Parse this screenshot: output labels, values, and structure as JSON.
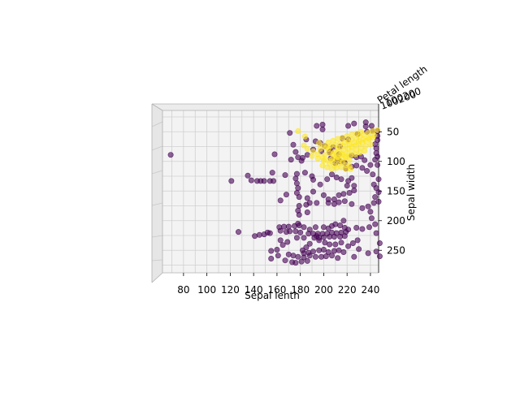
{
  "chart_data": {
    "type": "scatter",
    "projection": "3d",
    "view": "top-down",
    "xlabel": "Sepal lenth",
    "ylabel": "Sepal width",
    "zlabel": "Petal length",
    "xlim": [
      62,
      247
    ],
    "ylim": [
      288,
      14
    ],
    "xticks": [
      "80",
      "100",
      "120",
      "140",
      "160",
      "180",
      "200",
      "220",
      "240"
    ],
    "xtick_values": [
      80,
      100,
      120,
      140,
      160,
      180,
      200,
      220,
      240
    ],
    "yticks": [
      "50",
      "100",
      "150",
      "200",
      "250"
    ],
    "ytick_values": [
      50,
      100,
      150,
      200,
      250
    ],
    "zticks_label_text": "100200",
    "grid": true,
    "colors": {
      "class_0": "#440154",
      "class_1": "#fde725",
      "pane": "#f2f2f2",
      "grid": "#d0d0d0"
    },
    "series": [
      {
        "color": "#440154",
        "points": [
          [
            69,
            89
          ],
          [
            121,
            133
          ],
          [
            135,
            124
          ],
          [
            138,
            132
          ],
          [
            143,
            133
          ],
          [
            146,
            133
          ],
          [
            149,
            133
          ],
          [
            154,
            133
          ],
          [
            157,
            133
          ],
          [
            156,
            119
          ],
          [
            167,
            123
          ],
          [
            158,
            88
          ],
          [
            163,
            166
          ],
          [
            168,
            156
          ],
          [
            177,
            121
          ],
          [
            176,
            129
          ],
          [
            177,
            137
          ],
          [
            178,
            145
          ],
          [
            177,
            153
          ],
          [
            179,
            160
          ],
          [
            179,
            175
          ],
          [
            178,
            183
          ],
          [
            179,
            190
          ],
          [
            178,
            205
          ],
          [
            190,
            125
          ],
          [
            185,
            173
          ],
          [
            188,
            170
          ],
          [
            191,
            131
          ],
          [
            191,
            151
          ],
          [
            194,
            170
          ],
          [
            193,
            211
          ],
          [
            194,
            226
          ],
          [
            184,
            119
          ],
          [
            186,
            162
          ],
          [
            186,
            186
          ],
          [
            141,
            226
          ],
          [
            145,
            224
          ],
          [
            149,
            223
          ],
          [
            152,
            220
          ],
          [
            154,
            221
          ],
          [
            127,
            219
          ],
          [
            162,
            211
          ],
          [
            166,
            210
          ],
          [
            170,
            210
          ],
          [
            175,
            209
          ],
          [
            179,
            208
          ],
          [
            183,
            211
          ],
          [
            163,
            217
          ],
          [
            168,
            219
          ],
          [
            171,
            218
          ],
          [
            176,
            218
          ],
          [
            180,
            220
          ],
          [
            188,
            215
          ],
          [
            183,
            229
          ],
          [
            187,
            222
          ],
          [
            191,
            222
          ],
          [
            195,
            222
          ],
          [
            199,
            222
          ],
          [
            203,
            222
          ],
          [
            207,
            220
          ],
          [
            211,
            221
          ],
          [
            215,
            220
          ],
          [
            219,
            219
          ],
          [
            192,
            229
          ],
          [
            196,
            229
          ],
          [
            200,
            228
          ],
          [
            205,
            227
          ],
          [
            209,
            227
          ],
          [
            214,
            227
          ],
          [
            218,
            226
          ],
          [
            200,
            211
          ],
          [
            204,
            213
          ],
          [
            207,
            209
          ],
          [
            210,
            206
          ],
          [
            214,
            208
          ],
          [
            218,
            212
          ],
          [
            221,
            215
          ],
          [
            217,
            200
          ],
          [
            196,
            233
          ],
          [
            201,
            237
          ],
          [
            205,
            240
          ],
          [
            210,
            240
          ],
          [
            215,
            237
          ],
          [
            221,
            243
          ],
          [
            225,
            238
          ],
          [
            188,
            239
          ],
          [
            185,
            245
          ],
          [
            182,
            250
          ],
          [
            183,
            255
          ],
          [
            187,
            254
          ],
          [
            191,
            252
          ],
          [
            196,
            250
          ],
          [
            200,
            249
          ],
          [
            204,
            253
          ],
          [
            209,
            251
          ],
          [
            213,
            250
          ],
          [
            217,
            253
          ],
          [
            188,
            259
          ],
          [
            193,
            261
          ],
          [
            198,
            261
          ],
          [
            202,
            260
          ],
          [
            207,
            259
          ],
          [
            212,
            263
          ],
          [
            228,
            212
          ],
          [
            233,
            214
          ],
          [
            245,
            221
          ],
          [
            248,
            238
          ],
          [
            230,
            248
          ],
          [
            238,
            255
          ],
          [
            245,
            252
          ],
          [
            248,
            260
          ],
          [
            226,
            261
          ],
          [
            229,
            233
          ],
          [
            170,
            257
          ],
          [
            174,
            259
          ],
          [
            178,
            261
          ],
          [
            183,
            262
          ],
          [
            186,
            268
          ],
          [
            163,
            233
          ],
          [
            165,
            241
          ],
          [
            169,
            236
          ],
          [
            177,
            229
          ],
          [
            155,
            251
          ],
          [
            160,
            249
          ],
          [
            161,
            259
          ],
          [
            155,
            264
          ],
          [
            167,
            267
          ],
          [
            173,
            270
          ],
          [
            176,
            271
          ],
          [
            181,
            269
          ],
          [
            197,
            139
          ],
          [
            203,
            130
          ],
          [
            207,
            122
          ],
          [
            211,
            127
          ],
          [
            215,
            130
          ],
          [
            221,
            133
          ],
          [
            224,
            128
          ],
          [
            200,
            157
          ],
          [
            204,
            164
          ],
          [
            209,
            164
          ],
          [
            213,
            157
          ],
          [
            217,
            155
          ],
          [
            222,
            153
          ],
          [
            220,
            141
          ],
          [
            226,
            141
          ],
          [
            226,
            149
          ],
          [
            204,
            170
          ],
          [
            209,
            172
          ],
          [
            213,
            169
          ],
          [
            218,
            167
          ],
          [
            224,
            172
          ],
          [
            233,
            179
          ],
          [
            238,
            176
          ],
          [
            243,
            170
          ],
          [
            247,
            168
          ],
          [
            241,
            196
          ],
          [
            244,
            206
          ],
          [
            239,
            211
          ],
          [
            210,
            103
          ],
          [
            214,
            100
          ],
          [
            218,
            102
          ],
          [
            219,
            112
          ],
          [
            224,
            109
          ],
          [
            228,
            107
          ],
          [
            233,
            111
          ],
          [
            237,
            116
          ],
          [
            242,
            122
          ],
          [
            247,
            130
          ],
          [
            243,
            139
          ],
          [
            245,
            145
          ],
          [
            247,
            152
          ],
          [
            244,
            160
          ],
          [
            240,
            185
          ],
          [
            244,
            97
          ],
          [
            246,
            106
          ],
          [
            240,
            106
          ],
          [
            235,
            98
          ],
          [
            232,
            92
          ],
          [
            228,
            93
          ],
          [
            224,
            90
          ],
          [
            246,
            49
          ],
          [
            246,
            57
          ],
          [
            246,
            64
          ],
          [
            244,
            71
          ],
          [
            245,
            78
          ],
          [
            245,
            86
          ],
          [
            246,
            92
          ],
          [
            213,
            88
          ],
          [
            212,
            96
          ],
          [
            206,
            95
          ],
          [
            206,
            83
          ],
          [
            208,
            76
          ],
          [
            214,
            75
          ],
          [
            216,
            61
          ],
          [
            221,
            63
          ],
          [
            185,
            63
          ],
          [
            193,
            66
          ],
          [
            197,
            69
          ],
          [
            201,
            74
          ],
          [
            205,
            85
          ],
          [
            198,
            83
          ],
          [
            191,
            80
          ],
          [
            186,
            89
          ],
          [
            182,
            94
          ],
          [
            194,
            40
          ],
          [
            199,
            38
          ],
          [
            199,
            46
          ],
          [
            221,
            40
          ],
          [
            226,
            36
          ],
          [
            236,
            34
          ],
          [
            241,
            40
          ],
          [
            242,
            49
          ],
          [
            236,
            41
          ],
          [
            237,
            50
          ],
          [
            229,
            54
          ],
          [
            171,
            52
          ],
          [
            174,
            72
          ],
          [
            176,
            84
          ],
          [
            178,
            93
          ],
          [
            181,
            99
          ],
          [
            172,
            97
          ]
        ]
      },
      {
        "color": "#fde725",
        "points": [
          [
            178,
            49
          ],
          [
            184,
            58
          ],
          [
            183,
            73
          ],
          [
            186,
            79
          ],
          [
            191,
            83
          ],
          [
            195,
            88
          ],
          [
            199,
            94
          ],
          [
            203,
            98
          ],
          [
            207,
            100
          ],
          [
            211,
            97
          ],
          [
            215,
            95
          ],
          [
            219,
            94
          ],
          [
            222,
            98
          ],
          [
            190,
            91
          ],
          [
            195,
            95
          ],
          [
            200,
            99
          ],
          [
            205,
            104
          ],
          [
            209,
            107
          ],
          [
            213,
            104
          ],
          [
            216,
            101
          ],
          [
            219,
            106
          ],
          [
            222,
            108
          ],
          [
            201,
            89
          ],
          [
            205,
            86
          ],
          [
            209,
            84
          ],
          [
            213,
            82
          ],
          [
            217,
            80
          ],
          [
            221,
            78
          ],
          [
            224,
            75
          ],
          [
            227,
            73
          ],
          [
            230,
            70
          ],
          [
            233,
            68
          ],
          [
            236,
            65
          ],
          [
            239,
            62
          ],
          [
            242,
            60
          ],
          [
            197,
            79
          ],
          [
            202,
            77
          ],
          [
            206,
            74
          ],
          [
            210,
            72
          ],
          [
            214,
            70
          ],
          [
            218,
            68
          ],
          [
            221,
            66
          ],
          [
            224,
            63
          ],
          [
            228,
            61
          ],
          [
            231,
            58
          ],
          [
            234,
            55
          ],
          [
            238,
            52
          ],
          [
            242,
            49
          ],
          [
            246,
            47
          ],
          [
            204,
            68
          ],
          [
            208,
            65
          ],
          [
            212,
            62
          ],
          [
            216,
            60
          ],
          [
            220,
            57
          ],
          [
            224,
            55
          ],
          [
            228,
            53
          ],
          [
            232,
            50
          ],
          [
            196,
            69
          ],
          [
            200,
            73
          ],
          [
            204,
            79
          ],
          [
            208,
            88
          ],
          [
            212,
            93
          ],
          [
            216,
            88
          ],
          [
            220,
            86
          ],
          [
            224,
            83
          ],
          [
            228,
            80
          ],
          [
            232,
            77
          ],
          [
            236,
            74
          ],
          [
            240,
            71
          ],
          [
            199,
            107
          ],
          [
            203,
            110
          ],
          [
            207,
            113
          ],
          [
            211,
            111
          ],
          [
            215,
            110
          ],
          [
            219,
            113
          ],
          [
            223,
            113
          ],
          [
            212,
            77
          ],
          [
            217,
            74
          ],
          [
            222,
            72
          ],
          [
            226,
            69
          ],
          [
            230,
            66
          ],
          [
            234,
            63
          ],
          [
            238,
            60
          ],
          [
            243,
            56
          ],
          [
            207,
            96
          ],
          [
            211,
            91
          ],
          [
            215,
            87
          ],
          [
            219,
            92
          ],
          [
            223,
            90
          ],
          [
            227,
            88
          ],
          [
            231,
            85
          ],
          [
            235,
            82
          ]
        ]
      }
    ]
  }
}
